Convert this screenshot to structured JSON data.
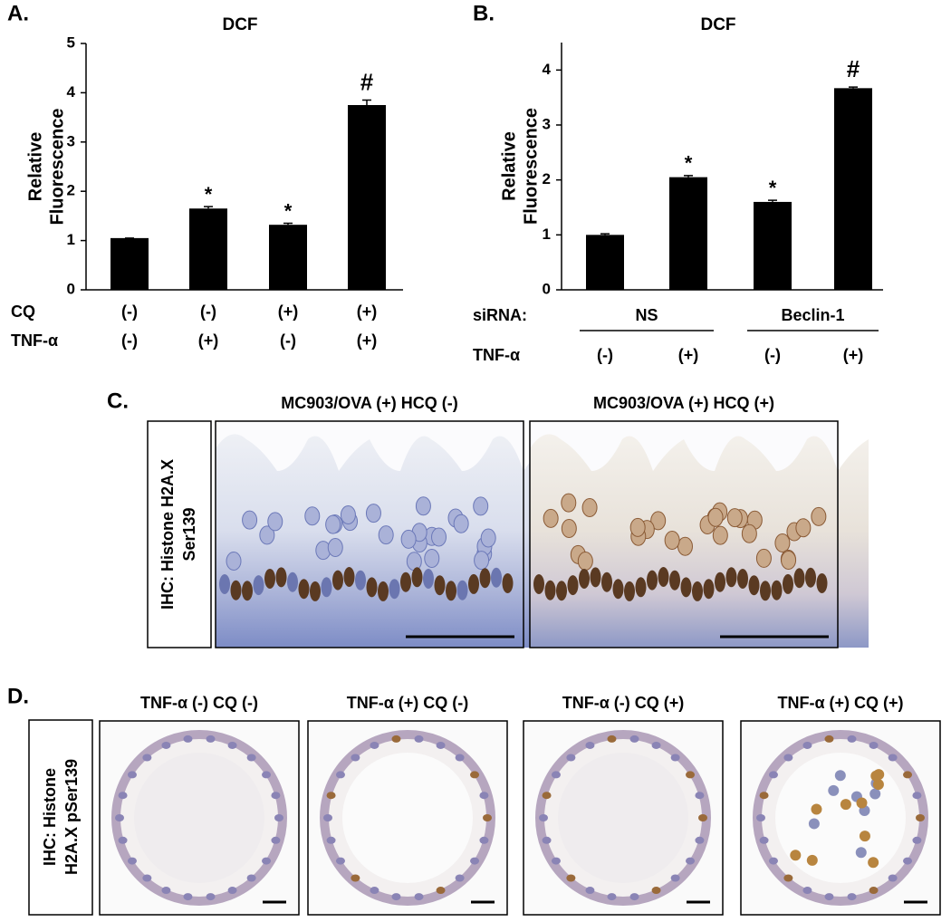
{
  "chart_data": [
    {
      "type": "bar",
      "panel": "A.",
      "title": "DCF",
      "ylabel": [
        "Relative",
        "Fluorescence"
      ],
      "values": [
        1.05,
        1.65,
        1.32,
        3.75
      ],
      "errors": [
        0,
        0.04,
        0.03,
        0.1
      ],
      "annotations": [
        null,
        "*",
        "*",
        "#"
      ],
      "color": "#000000",
      "ylim": [
        0,
        5
      ],
      "yticks": [
        0,
        1,
        2,
        3,
        4,
        5
      ],
      "rows": [
        {
          "label": "CQ",
          "values": [
            "(-)",
            "(-)",
            "(+)",
            "(+)"
          ]
        },
        {
          "label": "TNF-α",
          "values": [
            "(-)",
            "(+)",
            "(-)",
            "(+)"
          ]
        }
      ]
    },
    {
      "type": "bar",
      "panel": "B.",
      "title": "DCF",
      "ylabel": [
        "Relative",
        "Fluorescence"
      ],
      "values": [
        1.0,
        2.05,
        1.6,
        3.67
      ],
      "errors": [
        0.02,
        0.03,
        0.03,
        0.02
      ],
      "annotations": [
        null,
        "*",
        "*",
        "#"
      ],
      "color": "#000000",
      "ylim": [
        0,
        4.5
      ],
      "yticks": [
        0,
        1,
        2,
        3,
        4
      ],
      "rows": [
        {
          "label": "siRNA:",
          "groups": [
            "NS",
            "Beclin-1"
          ]
        },
        {
          "label": "TNF-α",
          "values": [
            "(-)",
            "(+)",
            "(-)",
            "(+)"
          ]
        }
      ]
    }
  ],
  "panel_c": {
    "label": "C.",
    "side_label": [
      "IHC: Histone H2A.X",
      "Ser139"
    ],
    "titles": [
      "MC903/OVA (+) HCQ (-)",
      "MC903/OVA (+) HCQ (+)"
    ]
  },
  "panel_d": {
    "label": "D.",
    "side_label": [
      "IHC: Histone",
      "H2A.X pSer139"
    ],
    "titles": [
      "TNF-α (-) CQ (-)",
      "TNF-α (+) CQ (-)",
      "TNF-α (-) CQ (+)",
      "TNF-α (+) CQ (+)"
    ]
  }
}
